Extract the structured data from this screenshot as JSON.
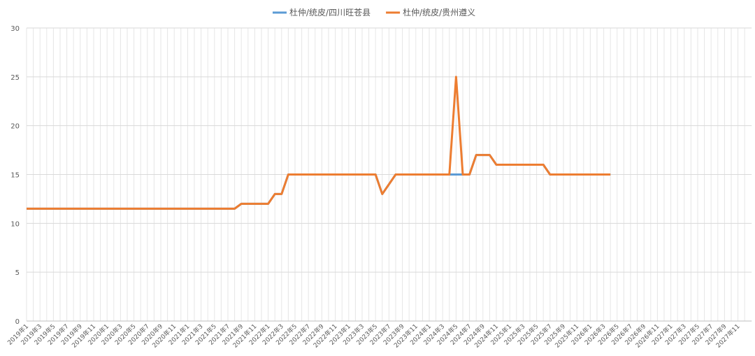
{
  "chart_data": {
    "type": "line",
    "categories": [
      "2019年1",
      null,
      "2019年3",
      null,
      "2019年5",
      null,
      "2019年7",
      null,
      "2019年9",
      null,
      "2019年11",
      null,
      "2020年1",
      null,
      "2020年3",
      null,
      "2020年5",
      null,
      "2020年7",
      null,
      "2020年9",
      null,
      "2020年11",
      null,
      "2021年1",
      null,
      "2021年3",
      null,
      "2021年5",
      null,
      "2021年7",
      null,
      "2021年9",
      null,
      "2021年11",
      null,
      "2022年1",
      null,
      "2022年3",
      null,
      "2022年5",
      null,
      "2022年7",
      null,
      "2022年9",
      null,
      "2022年11",
      null,
      "2023年1",
      null,
      "2023年3",
      null,
      "2023年5",
      null,
      "2023年7",
      null,
      "2023年9",
      null,
      "2023年11",
      null,
      "2024年1",
      null,
      "2024年3",
      null,
      "2024年5",
      null,
      "2024年7",
      null,
      "2024年9",
      null,
      "2024年11",
      null,
      "2025年1",
      null,
      "2025年3",
      null,
      "2025年5",
      null,
      "2025年7",
      null,
      "2025年9",
      null,
      "2025年11",
      null,
      "2026年1",
      null,
      "2026年3",
      null,
      "2026年5",
      null,
      "2026年7",
      null,
      "2026年9",
      null,
      "2026年11",
      null,
      "2027年1",
      null,
      "2027年3",
      null,
      "2027年5",
      null,
      "2027年7",
      null,
      "2027年9",
      null,
      "2027年11",
      null
    ],
    "series": [
      {
        "name": "杜仲/统皮/四川旺苍县",
        "color": "#5b9bd5",
        "values": [
          11.5,
          11.5,
          11.5,
          11.5,
          11.5,
          11.5,
          11.5,
          11.5,
          11.5,
          11.5,
          11.5,
          11.5,
          11.5,
          11.5,
          11.5,
          11.5,
          11.5,
          11.5,
          11.5,
          11.5,
          11.5,
          11.5,
          11.5,
          11.5,
          11.5,
          11.5,
          11.5,
          11.5,
          11.5,
          11.5,
          11.5,
          11.5,
          12,
          12,
          12,
          12,
          12,
          13,
          13,
          15,
          15,
          15,
          15,
          15,
          15,
          15,
          15,
          15,
          15,
          15,
          15,
          15,
          15,
          13,
          14,
          15,
          15,
          15,
          15,
          15,
          15,
          15,
          15,
          15,
          15,
          15,
          15,
          17,
          17,
          17,
          16,
          16,
          16,
          16,
          16,
          16,
          16,
          16,
          15,
          15,
          15,
          15,
          15,
          15,
          15,
          15,
          15,
          15,
          null,
          null,
          null,
          null,
          null,
          null,
          null,
          null,
          null,
          null,
          null,
          null,
          null,
          null,
          null,
          null,
          null,
          null,
          null,
          null
        ]
      },
      {
        "name": "杜仲/统皮/贵州遵义",
        "color": "#ed7d31",
        "values": [
          11.5,
          11.5,
          11.5,
          11.5,
          11.5,
          11.5,
          11.5,
          11.5,
          11.5,
          11.5,
          11.5,
          11.5,
          11.5,
          11.5,
          11.5,
          11.5,
          11.5,
          11.5,
          11.5,
          11.5,
          11.5,
          11.5,
          11.5,
          11.5,
          11.5,
          11.5,
          11.5,
          11.5,
          11.5,
          11.5,
          11.5,
          11.5,
          12,
          12,
          12,
          12,
          12,
          13,
          13,
          15,
          15,
          15,
          15,
          15,
          15,
          15,
          15,
          15,
          15,
          15,
          15,
          15,
          15,
          13,
          14,
          15,
          15,
          15,
          15,
          15,
          15,
          15,
          15,
          15,
          25,
          15,
          15,
          17,
          17,
          17,
          16,
          16,
          16,
          16,
          16,
          16,
          16,
          16,
          15,
          15,
          15,
          15,
          15,
          15,
          15,
          15,
          15,
          15,
          null,
          null,
          null,
          null,
          null,
          null,
          null,
          null,
          null,
          null,
          null,
          null,
          null,
          null,
          null,
          null,
          null,
          null,
          null,
          null
        ]
      }
    ],
    "ylim": [
      0,
      30
    ],
    "yticks": [
      0,
      5,
      10,
      15,
      20,
      25,
      30
    ],
    "grid": true,
    "legend": "top"
  }
}
